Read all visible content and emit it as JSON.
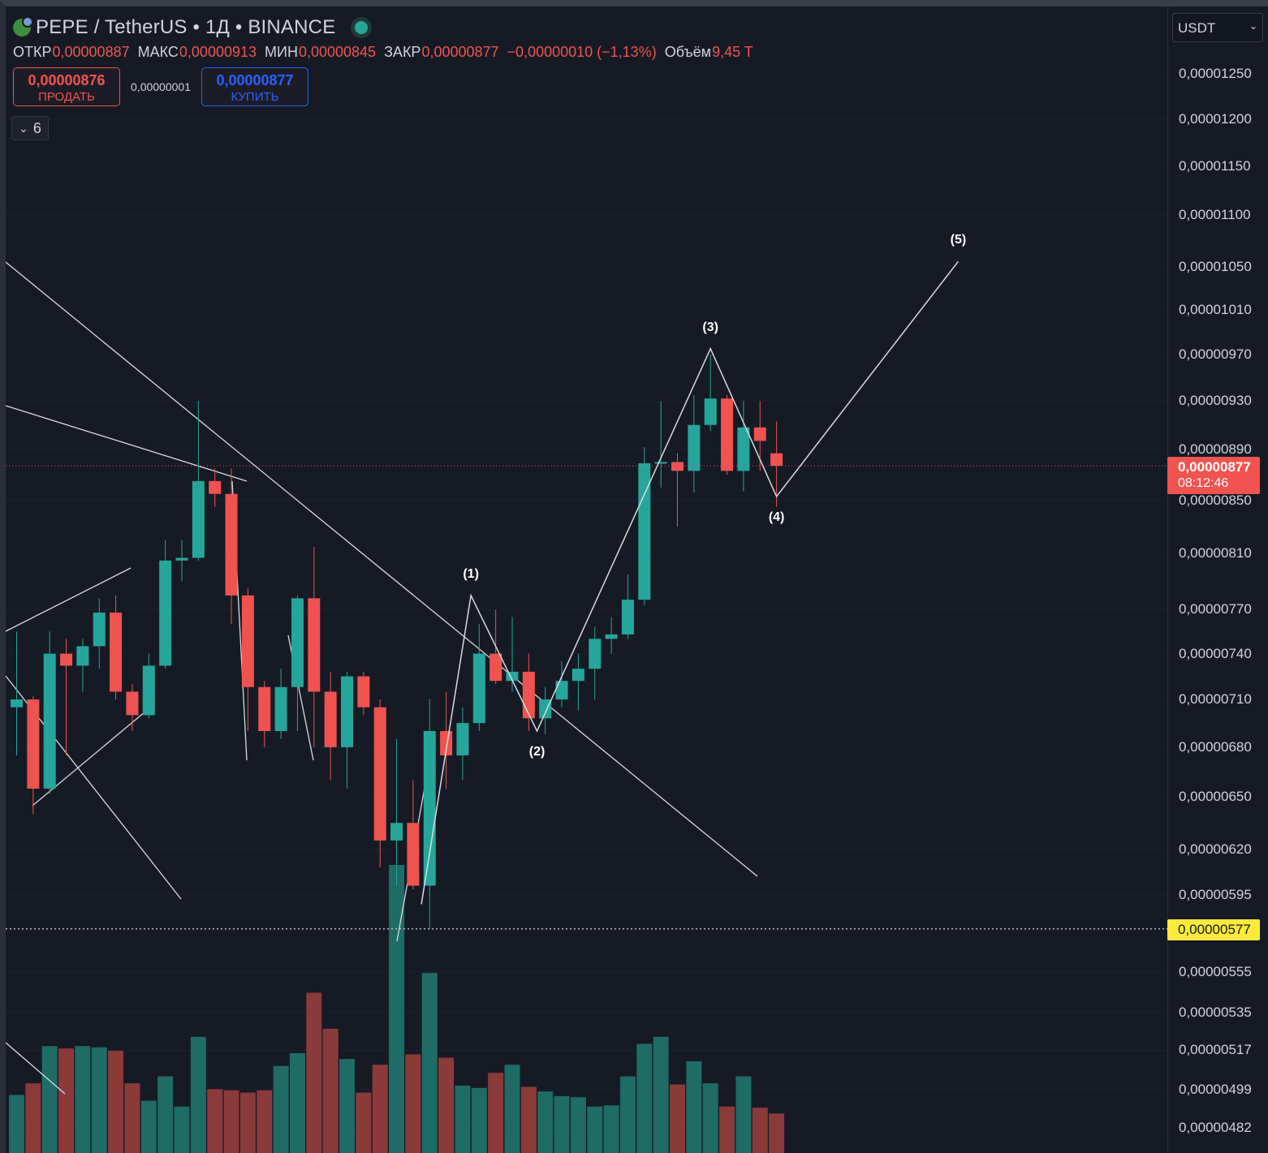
{
  "header": {
    "symbol_title": "PEPE / TetherUS • 1Д • BINANCE",
    "ohlc": {
      "open_label": "ОТКР",
      "open_value": "0,00000887",
      "high_label": "МАКС",
      "high_value": "0,00000913",
      "low_label": "МИН",
      "low_value": "0,00000845",
      "close_label": "ЗАКР",
      "close_value": "0,00000877",
      "change_value": "−0,00000010 (−1,13%)",
      "volume_label": "Объём",
      "volume_value": "9,45 T"
    },
    "sell_price": "0,00000876",
    "sell_label": "ПРОДАТЬ",
    "spread": "0,00000001",
    "buy_price": "0,00000877",
    "buy_label": "КУПИТЬ",
    "indicators_count": "6"
  },
  "axis": {
    "currency": "USDT",
    "labels": [
      "0,00001250",
      "0,00001200",
      "0,00001150",
      "0,00001100",
      "0,00001050",
      "0,00001010",
      "0,00000970",
      "0,00000930",
      "0,00000890",
      "0,00000850",
      "0,00000810",
      "0,00000770",
      "0,00000740",
      "0,00000710",
      "0,00000680",
      "0,00000650",
      "0,00000620",
      "0,00000595",
      "0,00000555",
      "0,00000535",
      "0,00000517",
      "0,00000499",
      "0,00000482"
    ],
    "last_price": "0,00000877",
    "countdown": "08:12:46",
    "alert_price": "0,00000577"
  },
  "waves": [
    "(1)",
    "(2)",
    "(3)",
    "(4)",
    "(5)"
  ],
  "colors": {
    "up": "#26a69a",
    "down": "#ef5350",
    "vol_up": "#1f6b66",
    "vol_down": "#8b3a3a",
    "background": "#161a25"
  },
  "chart_data": {
    "type": "candlestick",
    "symbol": "PEPE / TetherUS",
    "interval": "1Д",
    "exchange": "BINANCE",
    "scale": "log",
    "candles": [
      {
        "o": 7.05,
        "h": 7.55,
        "l": 6.75,
        "c": 7.1
      },
      {
        "o": 7.1,
        "h": 7.12,
        "l": 6.4,
        "c": 6.55
      },
      {
        "o": 6.55,
        "h": 7.55,
        "l": 6.52,
        "c": 7.4
      },
      {
        "o": 7.4,
        "h": 7.5,
        "l": 6.75,
        "c": 7.32
      },
      {
        "o": 7.32,
        "h": 7.5,
        "l": 7.15,
        "c": 7.45
      },
      {
        "o": 7.45,
        "h": 7.78,
        "l": 7.3,
        "c": 7.68
      },
      {
        "o": 7.68,
        "h": 7.8,
        "l": 7.1,
        "c": 7.15
      },
      {
        "o": 7.15,
        "h": 7.2,
        "l": 6.9,
        "c": 7.0
      },
      {
        "o": 7.0,
        "h": 7.4,
        "l": 6.98,
        "c": 7.32
      },
      {
        "o": 7.32,
        "h": 8.2,
        "l": 7.3,
        "c": 8.05
      },
      {
        "o": 8.05,
        "h": 8.2,
        "l": 7.9,
        "c": 8.07
      },
      {
        "o": 8.07,
        "h": 9.3,
        "l": 8.05,
        "c": 8.65
      },
      {
        "o": 8.65,
        "h": 8.75,
        "l": 8.45,
        "c": 8.55
      },
      {
        "o": 8.55,
        "h": 8.75,
        "l": 7.6,
        "c": 7.8
      },
      {
        "o": 7.8,
        "h": 7.85,
        "l": 6.9,
        "c": 7.18
      },
      {
        "o": 7.18,
        "h": 7.22,
        "l": 6.8,
        "c": 6.9
      },
      {
        "o": 6.9,
        "h": 7.3,
        "l": 6.85,
        "c": 7.18
      },
      {
        "o": 7.18,
        "h": 7.8,
        "l": 6.9,
        "c": 7.78
      },
      {
        "o": 7.78,
        "h": 8.15,
        "l": 6.8,
        "c": 7.15
      },
      {
        "o": 7.15,
        "h": 7.28,
        "l": 6.6,
        "c": 6.8
      },
      {
        "o": 6.8,
        "h": 7.28,
        "l": 6.55,
        "c": 7.25
      },
      {
        "o": 7.25,
        "h": 7.28,
        "l": 7.0,
        "c": 7.05
      },
      {
        "o": 7.05,
        "h": 7.1,
        "l": 6.1,
        "c": 6.25
      },
      {
        "o": 6.25,
        "h": 6.85,
        "l": 6.0,
        "c": 6.35
      },
      {
        "o": 6.35,
        "h": 6.6,
        "l": 5.98,
        "c": 6.0
      },
      {
        "o": 6.0,
        "h": 7.1,
        "l": 5.77,
        "c": 6.9
      },
      {
        "o": 6.9,
        "h": 7.15,
        "l": 6.55,
        "c": 6.75
      },
      {
        "o": 6.75,
        "h": 7.05,
        "l": 6.6,
        "c": 6.95
      },
      {
        "o": 6.95,
        "h": 7.6,
        "l": 6.9,
        "c": 7.4
      },
      {
        "o": 7.4,
        "h": 7.7,
        "l": 7.2,
        "c": 7.22
      },
      {
        "o": 7.22,
        "h": 7.65,
        "l": 7.15,
        "c": 7.28
      },
      {
        "o": 7.28,
        "h": 7.4,
        "l": 6.9,
        "c": 6.98
      },
      {
        "o": 6.98,
        "h": 7.18,
        "l": 6.88,
        "c": 7.1
      },
      {
        "o": 7.1,
        "h": 7.35,
        "l": 7.05,
        "c": 7.22
      },
      {
        "o": 7.22,
        "h": 7.4,
        "l": 7.03,
        "c": 7.3
      },
      {
        "o": 7.3,
        "h": 7.58,
        "l": 7.1,
        "c": 7.5
      },
      {
        "o": 7.5,
        "h": 7.65,
        "l": 7.4,
        "c": 7.53
      },
      {
        "o": 7.53,
        "h": 7.95,
        "l": 7.5,
        "c": 7.77
      },
      {
        "o": 7.77,
        "h": 8.92,
        "l": 7.73,
        "c": 8.79
      },
      {
        "o": 8.79,
        "h": 9.3,
        "l": 8.6,
        "c": 8.8
      },
      {
        "o": 8.8,
        "h": 8.87,
        "l": 8.3,
        "c": 8.73
      },
      {
        "o": 8.73,
        "h": 9.35,
        "l": 8.56,
        "c": 9.1
      },
      {
        "o": 9.1,
        "h": 9.7,
        "l": 9.05,
        "c": 9.32
      },
      {
        "o": 9.32,
        "h": 9.35,
        "l": 8.7,
        "c": 8.73
      },
      {
        "o": 8.73,
        "h": 9.3,
        "l": 8.57,
        "c": 9.08
      },
      {
        "o": 9.08,
        "h": 9.3,
        "l": 8.73,
        "c": 8.97
      },
      {
        "o": 8.87,
        "h": 9.13,
        "l": 8.45,
        "c": 8.77
      }
    ],
    "price_unit": "×1e-8 USDT",
    "volumes": [
      0.5,
      0.6,
      0.92,
      0.9,
      0.92,
      0.91,
      0.88,
      0.6,
      0.45,
      0.66,
      0.4,
      1.0,
      0.55,
      0.54,
      0.52,
      0.54,
      0.75,
      0.86,
      1.38,
      1.07,
      0.81,
      0.52,
      0.76,
      2.48,
      0.85,
      1.55,
      0.82,
      0.58,
      0.56,
      0.69,
      0.76,
      0.57,
      0.53,
      0.49,
      0.48,
      0.4,
      0.41,
      0.66,
      0.94,
      1.0,
      0.59,
      0.79,
      0.6,
      0.4,
      0.66,
      0.39,
      0.34
    ],
    "volume_unit": "relative",
    "wave_points": [
      {
        "label": "(1)",
        "candle": 27.5,
        "price": 7.8
      },
      {
        "label": "(2)",
        "candle": 31.5,
        "price": 6.9
      },
      {
        "label": "(3)",
        "candle": 42,
        "price": 9.75
      },
      {
        "label": "(4)",
        "candle": 46,
        "price": 8.53
      },
      {
        "label": "(5)",
        "candle": 57,
        "price": 10.55
      }
    ],
    "last_price_line": 8.77,
    "alert_line": 5.77,
    "y_axis_ticks": [
      12.5,
      12.0,
      11.5,
      11.0,
      10.5,
      10.1,
      9.7,
      9.3,
      8.9,
      8.5,
      8.1,
      7.7,
      7.4,
      7.1,
      6.8,
      6.5,
      6.2,
      5.95,
      5.55,
      5.35,
      5.17,
      4.99,
      4.82
    ]
  }
}
